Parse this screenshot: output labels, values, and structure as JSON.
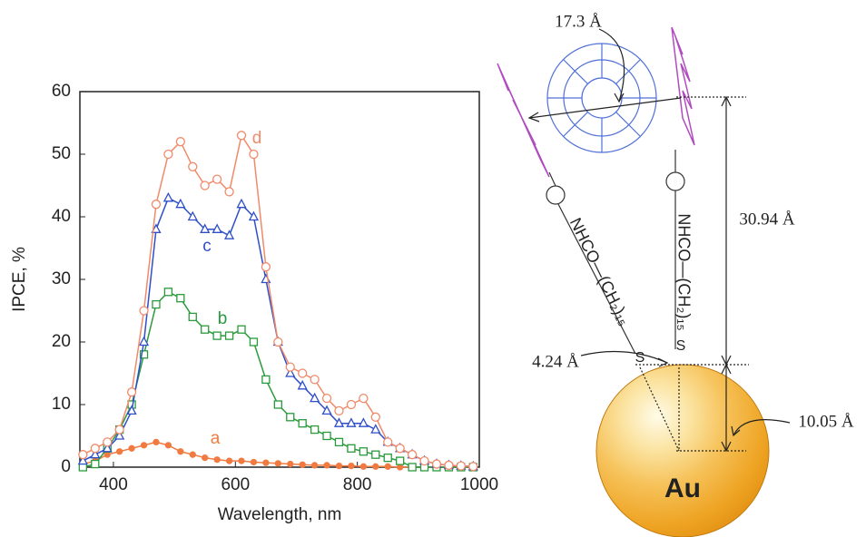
{
  "chart_data": {
    "type": "line",
    "x_label": "Wavelength, nm",
    "y_label": "IPCE, %",
    "x": [
      350,
      370,
      390,
      410,
      430,
      450,
      470,
      490,
      510,
      530,
      550,
      570,
      590,
      610,
      630,
      650,
      670,
      690,
      710,
      730,
      750,
      770,
      790,
      810,
      830,
      850,
      870,
      890,
      910,
      930,
      950,
      970,
      990
    ],
    "series": [
      {
        "name": "a",
        "color": "#f07a40",
        "marker": "small-circle",
        "values": [
          0.5,
          1,
          2,
          2.5,
          3,
          3.5,
          4,
          3.5,
          2.5,
          2,
          1.5,
          1.2,
          1,
          1,
          0.8,
          0.7,
          0.6,
          0.5,
          0.4,
          0.3,
          0.3,
          0.2,
          0.2,
          0.1,
          0.1,
          0.1,
          0,
          0,
          0,
          0,
          0,
          0,
          0
        ]
      },
      {
        "name": "b",
        "color": "#2a9a3c",
        "marker": "square",
        "values": [
          0,
          0.5,
          3,
          6,
          10,
          18,
          26,
          28,
          27,
          24,
          22,
          21,
          21,
          22,
          20,
          14,
          10,
          8,
          7,
          6,
          5,
          4,
          3,
          2.5,
          2,
          1.5,
          1,
          0,
          0,
          0,
          0,
          0,
          0
        ]
      },
      {
        "name": "c",
        "color": "#2f4fc8",
        "marker": "triangle",
        "values": [
          1,
          2,
          3,
          5,
          9,
          20,
          38,
          43,
          42,
          40,
          38,
          38,
          37,
          42,
          40,
          30,
          20,
          15,
          13,
          11,
          9,
          7,
          7,
          7,
          6,
          4,
          3,
          2,
          1,
          0.5,
          0.3,
          0.2,
          0.1
        ]
      },
      {
        "name": "d",
        "color": "#f08a6a",
        "marker": "circle",
        "values": [
          2,
          3,
          4,
          6,
          12,
          25,
          42,
          50,
          52,
          48,
          45,
          46,
          44,
          53,
          50,
          32,
          20,
          16,
          15,
          14,
          11,
          9,
          10,
          11,
          8,
          4,
          3,
          2,
          1,
          0.5,
          0.3,
          0.2,
          0.1
        ]
      }
    ],
    "xlim": [
      345,
      1000
    ],
    "xticks": [
      400,
      600,
      800,
      1000
    ],
    "ylim": [
      0,
      60
    ],
    "yticks": [
      0,
      10,
      20,
      30,
      40,
      50,
      60
    ],
    "grid": false
  },
  "diagram": {
    "fullerene_diameter": "17.3 Å",
    "chain_height": "30.94 Å",
    "spacing": "4.24 Å",
    "core_radius": "10.05 Å",
    "core_label": "Au",
    "chain_left": "NHCO—(CH₂)₁₅",
    "chain_right": "NHCO—(CH₂)₁₅",
    "sulfur_left": "S",
    "sulfur_right": "S"
  }
}
